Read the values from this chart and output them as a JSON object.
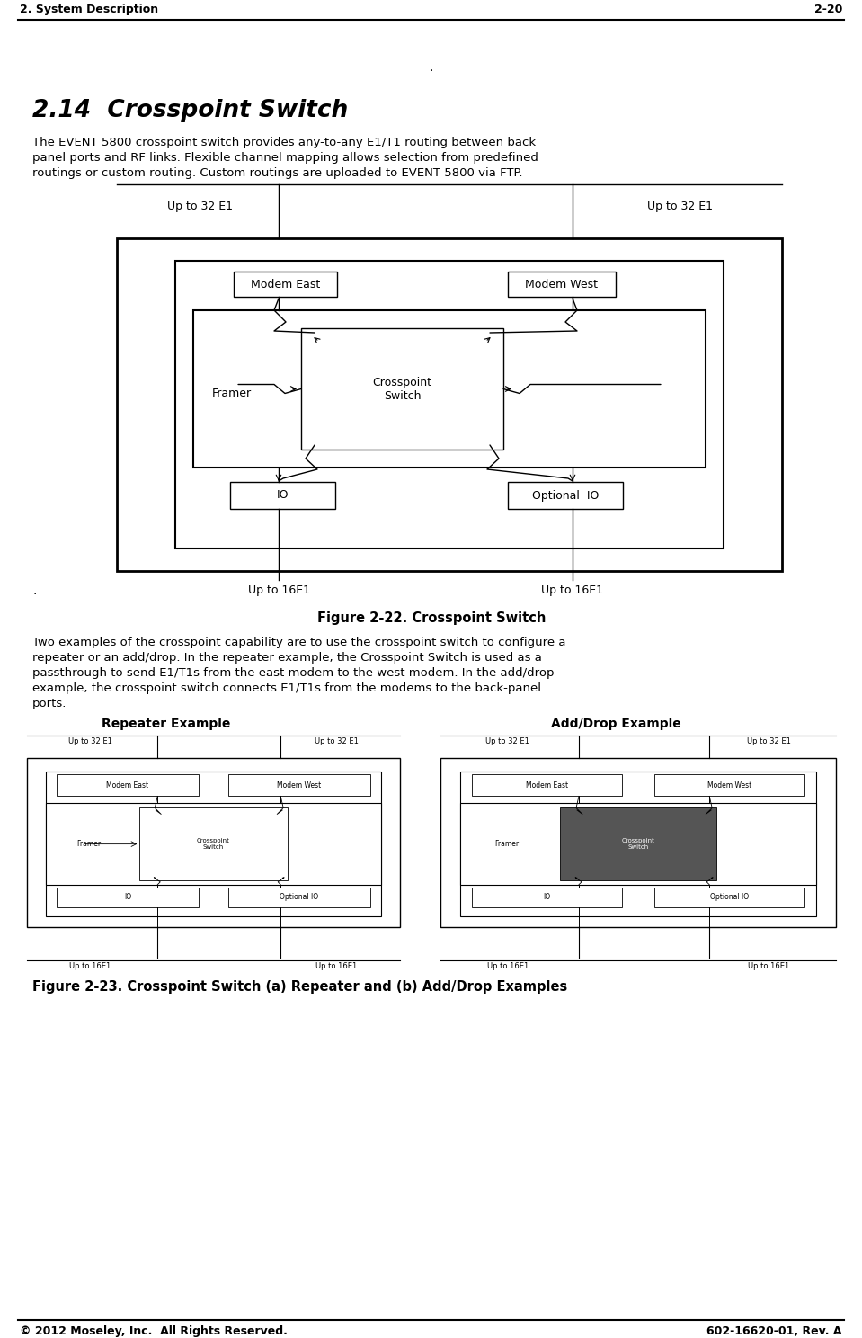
{
  "header_left": "2. System Description",
  "header_right": "2-20",
  "footer_left": "© 2012 Moseley, Inc.  All Rights Reserved.",
  "footer_right": "602-16620-01, Rev. A",
  "section_title": "2.14  Crosspoint Switch",
  "body_line1": "The EVENT 5800 crosspoint switch provides any-to-any E1/T1 routing between back",
  "body_line2": "panel ports and RF links. Flexible channel mapping allows selection from predefined",
  "body_line3": "routings or custom routing. Custom routings are uploaded to EVENT 5800 via FTP.",
  "fig1_caption": "Figure 2-22. Crosspoint Switch",
  "fig2_caption": "Figure 2-23. Crosspoint Switch (a) Repeater and (b) Add/Drop Examples",
  "body2_line1": "Two examples of the crosspoint capability are to use the crosspoint switch to configure a",
  "body2_line2": "repeater or an add/drop. In the repeater example, the Crosspoint Switch is used as a",
  "body2_line3": "passthrough to send E1/T1s from the east modem to the west modem. In the add/drop",
  "body2_line4": "example, the crosspoint switch connects E1/T1s from the modems to the back-panel",
  "body2_line5": "ports.",
  "bg_color": "#ffffff",
  "text_color": "#000000"
}
